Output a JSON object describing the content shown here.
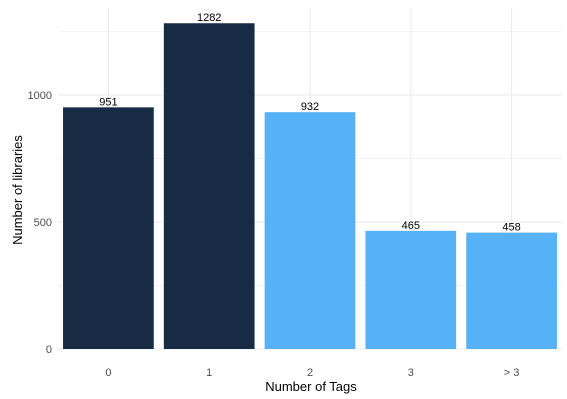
{
  "chart_data": {
    "type": "bar",
    "title": "",
    "xlabel": "Number of Tags",
    "ylabel": "Number of libraries",
    "categories": [
      "0",
      "1",
      "2",
      "3",
      "> 3"
    ],
    "values": [
      951,
      1282,
      932,
      465,
      458
    ],
    "data_labels": [
      "951",
      "1282",
      "932",
      "465",
      "458"
    ],
    "bar_colors": [
      "#172b45",
      "#172b45",
      "#56b1f7",
      "#56b1f7",
      "#56b1f7"
    ],
    "ylim": [
      0,
      1342
    ],
    "yticks": [
      0,
      500,
      1000
    ],
    "ytick_labels": [
      "0",
      "500",
      "1000"
    ],
    "grid": true,
    "grid_color": "#ebebeb",
    "legend": "none"
  }
}
